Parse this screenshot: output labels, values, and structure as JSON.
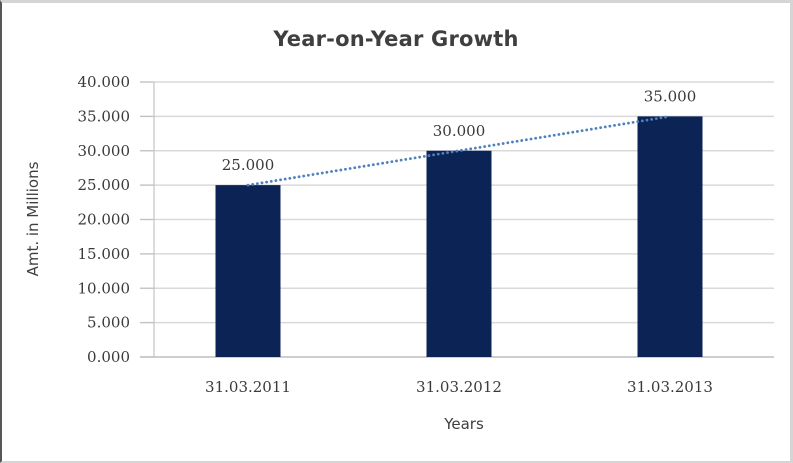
{
  "chart_data": {
    "type": "bar",
    "title": "Year-on-Year Growth",
    "xlabel": "Years",
    "ylabel": "Amt. in Millions",
    "categories": [
      "31.03.2011",
      "31.03.2012",
      "31.03.2013"
    ],
    "values": [
      25,
      30,
      35
    ],
    "data_labels": [
      "25.000",
      "30.000",
      "35.000"
    ],
    "ytick_values": [
      0,
      5,
      10,
      15,
      20,
      25,
      30,
      35,
      40
    ],
    "ytick_labels": [
      "0.000",
      "5.000",
      "10.000",
      "15.000",
      "20.000",
      "25.000",
      "30.000",
      "35.000",
      "40.000"
    ],
    "ylim": [
      0,
      40
    ],
    "grid": "horizontal",
    "legend": "none",
    "trendline": {
      "type": "linear",
      "style": "dotted",
      "values": [
        25,
        30,
        35
      ]
    },
    "colors": {
      "bar": "#0b2355",
      "trendline": "#4f81bd",
      "gridline": "#d9d9d9",
      "axis": "#c3c3c3",
      "label_text": "#3a3a3a",
      "title_text": "#3f3f3f",
      "background": "#ffffff"
    }
  }
}
